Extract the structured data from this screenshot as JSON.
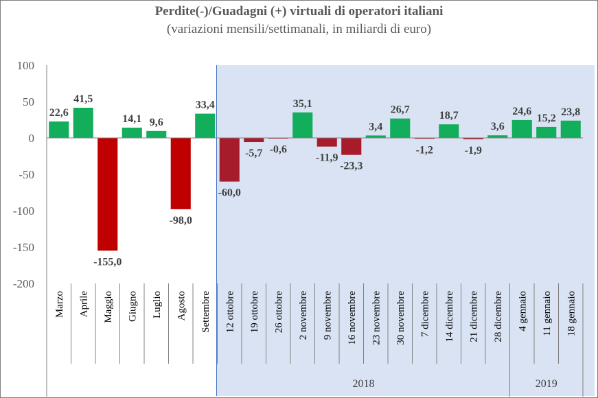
{
  "chart_data": {
    "type": "bar",
    "title": "Perdite(-)/Guadagni (+) virtuali di operatori italiani",
    "subtitle": "(variazioni mensili/settimanali, in miliardi di euro)",
    "categories": [
      "Marzo",
      "Aprile",
      "Maggio",
      "Giugno",
      "Luglio",
      "Agosto",
      "Settembre",
      "12 ottobre",
      "19 ottobre",
      "26 ottobre",
      "2 novembre",
      "9 novembre",
      "16 novembre",
      "23 novembre",
      "30 novembre",
      "7 dicembre",
      "14 dicembre",
      "21 dicembre",
      "28 dicembre",
      "4 gennaio",
      "11 gennaio",
      "18 gennaio"
    ],
    "values": [
      22.6,
      41.5,
      -155.0,
      14.1,
      9.6,
      -98.0,
      33.4,
      -60.0,
      -5.7,
      -0.6,
      35.1,
      -11.9,
      -23.3,
      3.4,
      26.7,
      -1.2,
      18.7,
      -1.9,
      3.6,
      24.6,
      15.2,
      23.8
    ],
    "value_labels": [
      "22,6",
      "41,5",
      "-155,0",
      "14,1",
      "9,6",
      "-98,0",
      "33,4",
      "-60,0",
      "-5,7",
      "-0,6",
      "35,1",
      "-11,9",
      "-23,3",
      "3,4",
      "26,7",
      "-1,2",
      "18,7",
      "-1,9",
      "3,6",
      "24,6",
      "15,2",
      "23,8"
    ],
    "ylim": [
      -200,
      100
    ],
    "yticks": [
      100,
      50,
      0,
      -50,
      -100,
      -150,
      -200
    ],
    "ytick_labels": [
      "100",
      "50",
      "0",
      "-50",
      "-100",
      "-150",
      "-200"
    ],
    "groups": [
      {
        "label": "2018",
        "from": 7,
        "to": 18
      },
      {
        "label": "2019",
        "from": 19,
        "to": 21
      }
    ],
    "shaded_from_index": 7,
    "colors": {
      "positive": "#13ae5c",
      "negative_monthly": "#c00000",
      "negative_weekly": "#a71c2b",
      "shaded_background": "#dae3f3",
      "text": "#595959"
    },
    "grid": false
  }
}
